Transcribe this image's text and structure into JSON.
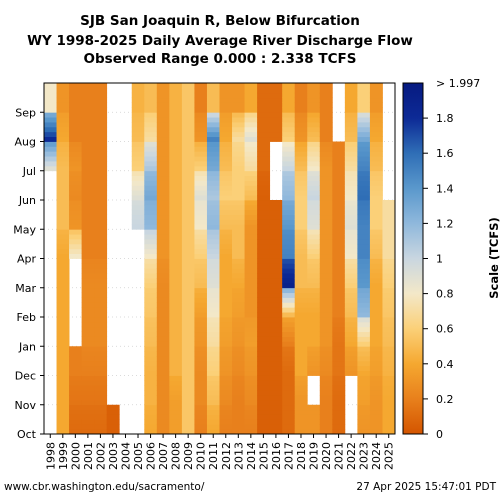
{
  "chart_data": {
    "type": "heatmap",
    "title": [
      "SJB San Joaquin R, Below Bifurcation",
      "WY 1998-2025 Daily Average River Discharge Flow",
      "Observed Range 0.000 : 2.338 TCFS"
    ],
    "x_label": "",
    "y_label": "",
    "years": [
      "1998",
      "1999",
      "2000",
      "2001",
      "2002",
      "2003",
      "2004",
      "2005",
      "2006",
      "2007",
      "2008",
      "2009",
      "2010",
      "2011",
      "2012",
      "2013",
      "2014",
      "2015",
      "2016",
      "2017",
      "2018",
      "2019",
      "2020",
      "2021",
      "2022",
      "2023",
      "2024",
      "2025"
    ],
    "months": [
      "Oct",
      "Nov",
      "Dec",
      "Jan",
      "Feb",
      "Mar",
      "Apr",
      "May",
      "Jun",
      "Jul",
      "Aug",
      "Sep"
    ],
    "colorbar": {
      "label": "Scale (TCFS)",
      "range": [
        0,
        2.0
      ],
      "ticks": [
        "0",
        "0.2",
        "0.4",
        "0.6",
        "0.8",
        "1",
        "1.2",
        "1.4",
        "1.6",
        "1.8"
      ],
      "top_label": "> 1.997",
      "colors": [
        "#d45500",
        "#e8801c",
        "#f5a830",
        "#fbd078",
        "#f3e8c8",
        "#c9d6e0",
        "#8fb8dc",
        "#5a98cc",
        "#2f6eb6",
        "#0d2a96",
        "#061a80"
      ]
    },
    "monthly_values": [
      [
        null,
        null,
        null,
        null,
        null,
        null,
        null,
        null,
        null,
        0.9,
        1.8,
        0.8
      ],
      [
        0.4,
        0.4,
        0.4,
        0.4,
        0.4,
        0.4,
        0.4,
        0.5,
        0.5,
        0.5,
        0.4,
        0.3
      ],
      [
        0.1,
        0.15,
        0.2,
        null,
        null,
        null,
        0.8,
        0.3,
        0.25,
        0.3,
        0.2,
        0.2
      ],
      [
        0.1,
        0.15,
        0.2,
        0.25,
        0.25,
        0.25,
        0.2,
        0.2,
        0.2,
        0.2,
        0.2,
        0.2
      ],
      [
        0.1,
        0.15,
        0.2,
        0.25,
        0.25,
        0.25,
        0.2,
        0.2,
        0.2,
        0.2,
        0.2,
        0.2
      ],
      [
        0.05,
        null,
        null,
        null,
        null,
        null,
        null,
        null,
        null,
        null,
        null,
        null
      ],
      [
        null,
        null,
        null,
        null,
        null,
        null,
        null,
        null,
        null,
        null,
        null,
        null
      ],
      [
        null,
        null,
        null,
        null,
        null,
        null,
        null,
        1.0,
        0.9,
        0.6,
        0.5,
        0.45
      ],
      [
        0.4,
        0.45,
        0.45,
        0.5,
        0.55,
        0.6,
        0.8,
        1.2,
        1.3,
        1.1,
        0.7,
        0.5
      ],
      [
        0.25,
        0.25,
        0.25,
        0.25,
        0.25,
        0.25,
        0.3,
        0.3,
        0.3,
        0.3,
        0.3,
        0.3
      ],
      [
        0.35,
        0.35,
        0.45,
        0.45,
        0.45,
        0.45,
        0.45,
        0.45,
        0.45,
        0.45,
        0.45,
        0.45
      ],
      [
        0.55,
        0.55,
        0.55,
        0.55,
        0.55,
        0.55,
        0.55,
        0.55,
        0.55,
        0.55,
        0.55,
        0.55
      ],
      [
        0.2,
        0.25,
        0.25,
        0.3,
        0.35,
        0.5,
        0.6,
        0.8,
        0.9,
        0.6,
        0.3,
        0.2
      ],
      [
        0.4,
        0.5,
        0.6,
        0.7,
        0.8,
        0.9,
        1.0,
        1.2,
        1.1,
        1.3,
        1.5,
        0.5
      ],
      [
        0.2,
        0.25,
        0.3,
        0.35,
        0.4,
        0.4,
        0.4,
        0.5,
        0.6,
        0.5,
        0.4,
        0.3
      ],
      [
        0.2,
        0.2,
        0.25,
        0.3,
        0.35,
        0.4,
        0.5,
        0.5,
        0.6,
        0.6,
        0.7,
        0.3
      ],
      [
        0.2,
        0.25,
        0.3,
        0.35,
        0.3,
        0.3,
        0.3,
        0.3,
        0.5,
        0.7,
        0.9,
        0.4
      ],
      [
        0.05,
        0.05,
        0.05,
        0.05,
        0.05,
        0.05,
        0.05,
        0.05,
        0.05,
        0.1,
        0.1,
        0.1
      ],
      [
        0.05,
        0.05,
        0.05,
        0.05,
        0.05,
        0.05,
        0.05,
        0.05,
        null,
        null,
        0.1,
        0.1
      ],
      [
        0.1,
        0.1,
        0.1,
        0.2,
        0.5,
        1.9,
        1.5,
        1.4,
        1.2,
        1.0,
        0.6,
        0.4
      ],
      [
        0.3,
        0.3,
        0.4,
        0.4,
        0.4,
        0.5,
        0.5,
        0.6,
        0.6,
        0.5,
        0.3,
        0.2
      ],
      [
        0.3,
        null,
        0.3,
        0.4,
        0.4,
        0.5,
        0.6,
        0.9,
        1.0,
        0.8,
        0.5,
        0.3
      ],
      [
        0.2,
        0.2,
        0.25,
        0.3,
        0.3,
        0.3,
        0.3,
        0.3,
        0.3,
        0.3,
        0.2,
        0.2
      ],
      [
        0.1,
        0.1,
        0.15,
        0.15,
        0.2,
        0.2,
        0.2,
        0.2,
        0.2,
        0.2,
        null,
        null
      ],
      [
        null,
        null,
        0.3,
        0.4,
        0.5,
        0.6,
        0.8,
        0.9,
        0.8,
        0.7,
        0.5,
        0.4
      ],
      [
        0.3,
        0.35,
        0.4,
        0.6,
        1.2,
        1.4,
        1.5,
        1.5,
        1.6,
        1.5,
        1.3,
        0.6
      ],
      [
        0.3,
        0.3,
        0.35,
        0.4,
        0.4,
        0.4,
        0.5,
        0.6,
        0.6,
        0.5,
        0.4,
        0.3
      ],
      [
        0.4,
        0.4,
        0.45,
        0.5,
        0.55,
        0.6,
        0.7,
        0.7,
        null,
        null,
        null,
        null
      ]
    ]
  },
  "footer": {
    "source": "www.cbr.washington.edu/sacramento/",
    "timestamp": "27 Apr 2025 15:47:01 PDT"
  }
}
